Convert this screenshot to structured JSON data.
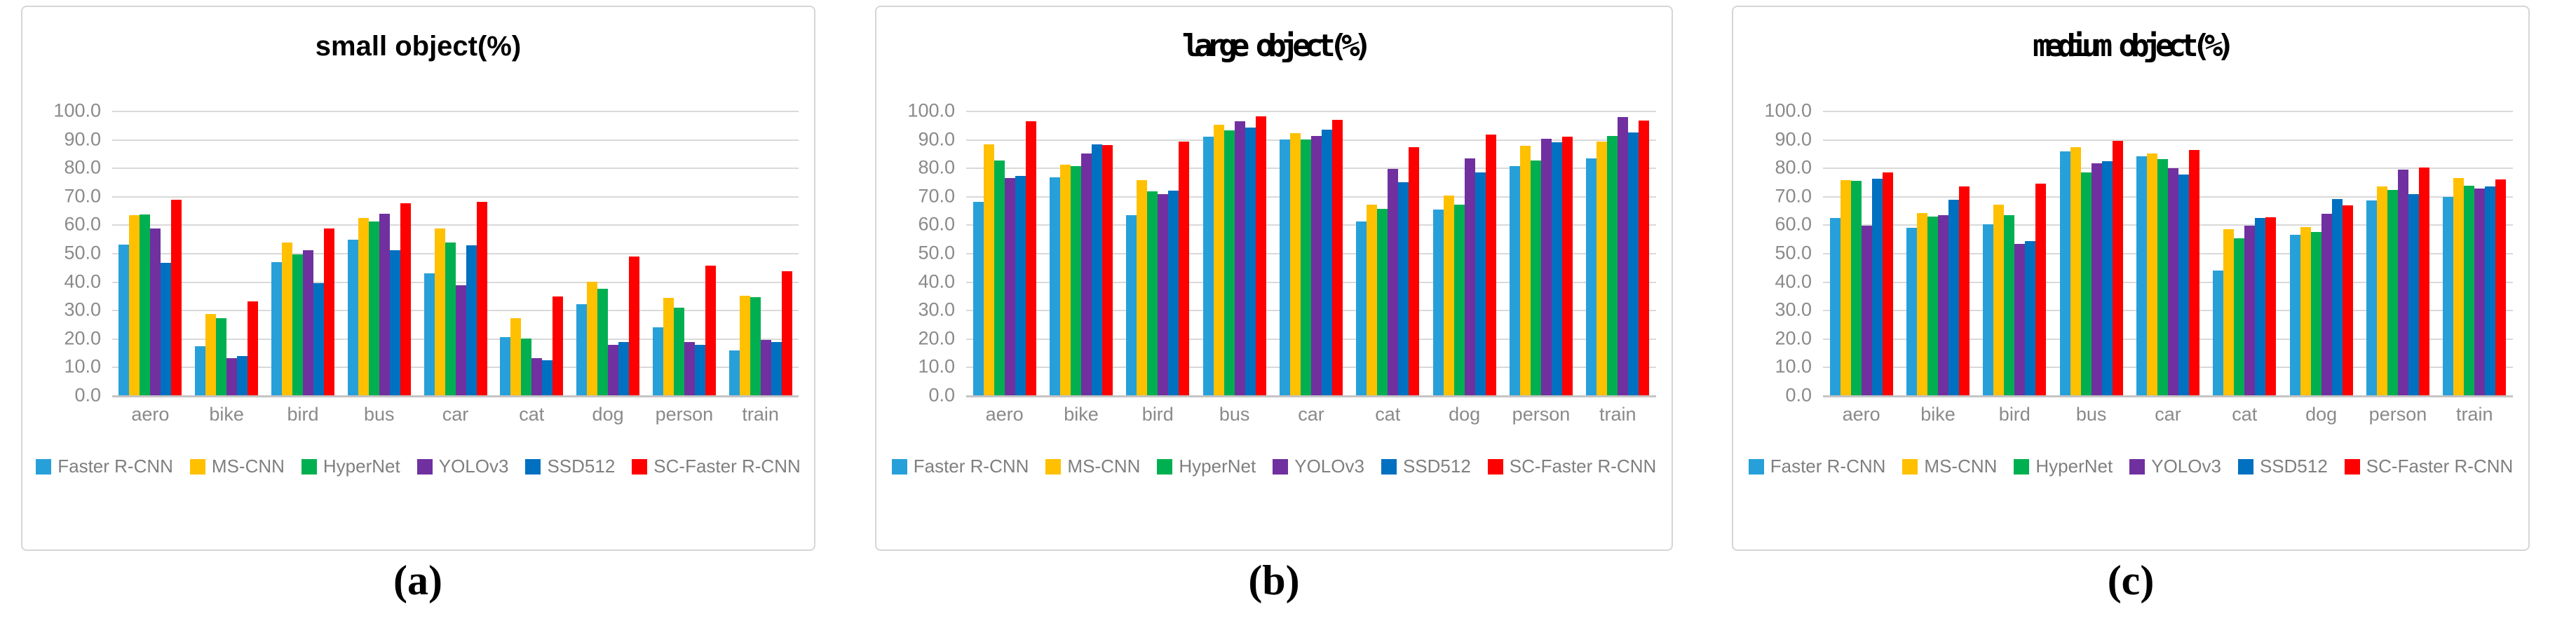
{
  "figure": {
    "captions": [
      {
        "label": "(a)"
      },
      {
        "label": "(b)"
      },
      {
        "label": "(c)"
      }
    ]
  },
  "appearance": {
    "gridline_color": "#d9d9d9",
    "axis_line_color": "#c4c4c4",
    "axis_text_color": "#8a8a8a",
    "legend_text_color": "#7f7f7f",
    "panel_border_color": "#d6d6d6",
    "background_color": "#ffffff"
  },
  "chart_data": [
    {
      "type": "bar",
      "title": "small object(%)",
      "title_style": "bold-sans",
      "categories": [
        "aero",
        "bike",
        "bird",
        "bus",
        "car",
        "cat",
        "dog",
        "person",
        "train"
      ],
      "series": [
        {
          "name": "Faster R-CNN",
          "color": "#27A0DA",
          "values": [
            52.9,
            17.3,
            46.8,
            54.6,
            42.8,
            20.4,
            32.0,
            23.9,
            15.8
          ]
        },
        {
          "name": "MS-CNN",
          "color": "#FFC000",
          "values": [
            63.3,
            28.5,
            53.6,
            62.4,
            58.7,
            27.1,
            39.8,
            34.2,
            35.0
          ]
        },
        {
          "name": "HyperNet",
          "color": "#00B050",
          "values": [
            63.5,
            27.0,
            49.5,
            61.2,
            53.8,
            19.9,
            37.4,
            30.9,
            34.5
          ]
        },
        {
          "name": "YOLOv3",
          "color": "#7030A0",
          "values": [
            58.6,
            13.0,
            51.0,
            63.7,
            38.6,
            13.1,
            17.7,
            18.8,
            19.4
          ]
        },
        {
          "name": "SSD512",
          "color": "#0070C0",
          "values": [
            46.5,
            13.9,
            39.4,
            51.0,
            52.6,
            12.3,
            18.8,
            17.7,
            18.8
          ]
        },
        {
          "name": "SC-Faster R-CNN",
          "color": "#FF0000",
          "values": [
            68.8,
            33.0,
            58.6,
            67.4,
            68.1,
            34.8,
            48.8,
            45.5,
            43.7
          ]
        }
      ],
      "ylim": [
        0,
        100
      ],
      "ytick_step": 10,
      "ytick_labels": [
        "100.0",
        "90.0",
        "80.0",
        "70.0",
        "60.0",
        "50.0",
        "40.0",
        "30.0",
        "20.0",
        "10.0",
        "0.0"
      ],
      "grid": true,
      "legend_position": "bottom"
    },
    {
      "type": "bar",
      "title": "large object(%)",
      "title_style": "mono",
      "categories": [
        "aero",
        "bike",
        "bird",
        "bus",
        "car",
        "cat",
        "dog",
        "person",
        "train"
      ],
      "series": [
        {
          "name": "Faster R-CNN",
          "color": "#27A0DA",
          "values": [
            67.9,
            76.6,
            63.4,
            91.0,
            89.8,
            61.1,
            65.3,
            80.6,
            83.3
          ]
        },
        {
          "name": "MS-CNN",
          "color": "#FFC000",
          "values": [
            88.2,
            81.0,
            75.5,
            95.2,
            92.0,
            67.1,
            70.2,
            87.7,
            89.2
          ]
        },
        {
          "name": "HyperNet",
          "color": "#00B050",
          "values": [
            82.4,
            80.5,
            71.7,
            93.1,
            90.0,
            65.6,
            66.9,
            82.4,
            91.2
          ]
        },
        {
          "name": "YOLOv3",
          "color": "#7030A0",
          "values": [
            76.3,
            85.1,
            70.6,
            96.3,
            91.2,
            79.6,
            83.3,
            90.2,
            97.8
          ]
        },
        {
          "name": "SSD512",
          "color": "#0070C0",
          "values": [
            77.0,
            88.2,
            72.0,
            94.1,
            93.3,
            74.9,
            78.3,
            88.8,
            92.3
          ]
        },
        {
          "name": "SC-Faster R-CNN",
          "color": "#FF0000",
          "values": [
            96.2,
            88.0,
            89.1,
            98.1,
            96.7,
            87.2,
            91.7,
            91.0,
            96.6
          ]
        }
      ],
      "ylim": [
        0,
        100
      ],
      "ytick_step": 10,
      "ytick_labels": [
        "100.0",
        "90.0",
        "80.0",
        "70.0",
        "60.0",
        "50.0",
        "40.0",
        "30.0",
        "20.0",
        "10.0",
        "0.0"
      ],
      "grid": true,
      "legend_position": "bottom"
    },
    {
      "type": "bar",
      "title": "medium object(%)",
      "title_style": "mono",
      "categories": [
        "aero",
        "bike",
        "bird",
        "bus",
        "car",
        "cat",
        "dog",
        "person",
        "train"
      ],
      "series": [
        {
          "name": "Faster R-CNN",
          "color": "#27A0DA",
          "values": [
            62.3,
            58.9,
            60.2,
            85.6,
            83.9,
            43.9,
            56.4,
            68.5,
            69.6
          ]
        },
        {
          "name": "MS-CNN",
          "color": "#FFC000",
          "values": [
            75.6,
            64.1,
            67.0,
            87.2,
            85.0,
            58.3,
            59.2,
            73.3,
            76.4
          ]
        },
        {
          "name": "HyperNet",
          "color": "#00B050",
          "values": [
            75.3,
            62.7,
            63.3,
            78.4,
            83.1,
            55.1,
            57.5,
            72.2,
            73.7
          ]
        },
        {
          "name": "YOLOv3",
          "color": "#7030A0",
          "values": [
            59.6,
            63.3,
            53.1,
            81.6,
            79.7,
            59.6,
            63.7,
            79.2,
            72.7
          ]
        },
        {
          "name": "SSD512",
          "color": "#0070C0",
          "values": [
            76.2,
            68.7,
            54.3,
            82.3,
            77.6,
            62.3,
            69.0,
            70.8,
            73.3
          ]
        },
        {
          "name": "SC-Faster R-CNN",
          "color": "#FF0000",
          "values": [
            78.3,
            73.4,
            74.3,
            89.4,
            86.1,
            62.5,
            66.8,
            80.1,
            75.9
          ]
        }
      ],
      "ylim": [
        0,
        100
      ],
      "ytick_step": 10,
      "ytick_labels": [
        "100.0",
        "90.0",
        "80.0",
        "70.0",
        "60.0",
        "50.0",
        "40.0",
        "30.0",
        "20.0",
        "10.0",
        "0.0"
      ],
      "grid": true,
      "legend_position": "bottom"
    }
  ]
}
